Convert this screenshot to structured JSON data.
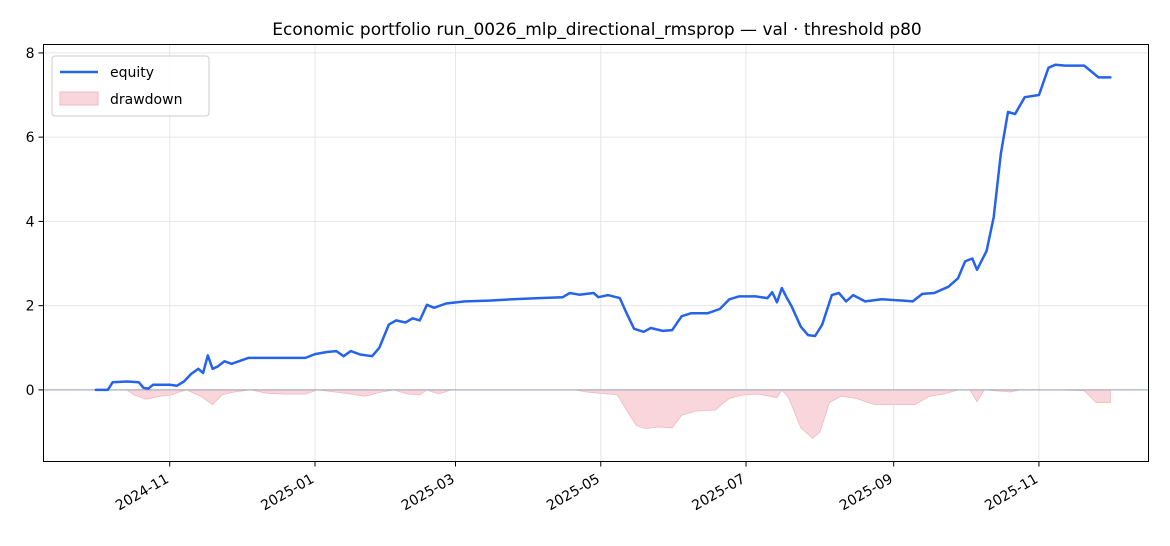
{
  "chart_data": {
    "type": "line",
    "title": "Economic portfolio run_0026_mlp_directional_rmsprop — val · threshold p80",
    "xlabel": "",
    "ylabel": "",
    "x_type": "date",
    "xlim": [
      "2024-09-09",
      "2025-12-17"
    ],
    "ylim": [
      -1.7,
      8.2
    ],
    "grid": true,
    "legend_position": "top-left",
    "colors": {
      "equity": "#2563eb",
      "drawdown_fill": "#f9d6dc",
      "drawdown_edge": "#f2b8c2",
      "zero_line": "#9aa0b4"
    },
    "x_ticks": [
      "2024-11",
      "2025-01",
      "2025-03",
      "2025-05",
      "2025-07",
      "2025-09",
      "2025-11"
    ],
    "x_tick_dates": [
      "2024-11-01",
      "2025-01-01",
      "2025-03-01",
      "2025-05-01",
      "2025-07-01",
      "2025-09-01",
      "2025-11-01"
    ],
    "y_ticks": [
      0,
      2,
      4,
      6,
      8
    ],
    "series": [
      {
        "name": "equity",
        "kind": "line",
        "points": [
          [
            "2024-10-01",
            0.0
          ],
          [
            "2024-10-06",
            0.0
          ],
          [
            "2024-10-08",
            0.18
          ],
          [
            "2024-10-14",
            0.2
          ],
          [
            "2024-10-19",
            0.18
          ],
          [
            "2024-10-21",
            0.05
          ],
          [
            "2024-10-23",
            0.03
          ],
          [
            "2024-10-25",
            0.12
          ],
          [
            "2024-11-01",
            0.12
          ],
          [
            "2024-11-04",
            0.1
          ],
          [
            "2024-11-07",
            0.2
          ],
          [
            "2024-11-10",
            0.38
          ],
          [
            "2024-11-13",
            0.5
          ],
          [
            "2024-11-15",
            0.4
          ],
          [
            "2024-11-17",
            0.82
          ],
          [
            "2024-11-19",
            0.5
          ],
          [
            "2024-11-21",
            0.55
          ],
          [
            "2024-11-24",
            0.68
          ],
          [
            "2024-11-27",
            0.62
          ],
          [
            "2024-12-01",
            0.7
          ],
          [
            "2024-12-04",
            0.76
          ],
          [
            "2024-12-10",
            0.76
          ],
          [
            "2024-12-20",
            0.76
          ],
          [
            "2024-12-28",
            0.76
          ],
          [
            "2025-01-01",
            0.85
          ],
          [
            "2025-01-06",
            0.9
          ],
          [
            "2025-01-10",
            0.92
          ],
          [
            "2025-01-13",
            0.8
          ],
          [
            "2025-01-16",
            0.92
          ],
          [
            "2025-01-20",
            0.84
          ],
          [
            "2025-01-25",
            0.8
          ],
          [
            "2025-01-28",
            1.0
          ],
          [
            "2025-02-01",
            1.55
          ],
          [
            "2025-02-04",
            1.65
          ],
          [
            "2025-02-08",
            1.6
          ],
          [
            "2025-02-11",
            1.7
          ],
          [
            "2025-02-14",
            1.65
          ],
          [
            "2025-02-17",
            2.02
          ],
          [
            "2025-02-20",
            1.95
          ],
          [
            "2025-02-25",
            2.05
          ],
          [
            "2025-03-05",
            2.1
          ],
          [
            "2025-03-15",
            2.12
          ],
          [
            "2025-03-25",
            2.15
          ],
          [
            "2025-04-05",
            2.18
          ],
          [
            "2025-04-15",
            2.2
          ],
          [
            "2025-04-18",
            2.3
          ],
          [
            "2025-04-22",
            2.26
          ],
          [
            "2025-04-28",
            2.3
          ],
          [
            "2025-04-30",
            2.2
          ],
          [
            "2025-05-04",
            2.25
          ],
          [
            "2025-05-09",
            2.18
          ],
          [
            "2025-05-12",
            1.8
          ],
          [
            "2025-05-15",
            1.45
          ],
          [
            "2025-05-19",
            1.38
          ],
          [
            "2025-05-22",
            1.47
          ],
          [
            "2025-05-27",
            1.4
          ],
          [
            "2025-05-31",
            1.42
          ],
          [
            "2025-06-04",
            1.75
          ],
          [
            "2025-06-08",
            1.82
          ],
          [
            "2025-06-15",
            1.82
          ],
          [
            "2025-06-20",
            1.92
          ],
          [
            "2025-06-24",
            2.15
          ],
          [
            "2025-06-28",
            2.22
          ],
          [
            "2025-07-05",
            2.22
          ],
          [
            "2025-07-10",
            2.18
          ],
          [
            "2025-07-12",
            2.32
          ],
          [
            "2025-07-14",
            2.08
          ],
          [
            "2025-07-16",
            2.42
          ],
          [
            "2025-07-18",
            2.2
          ],
          [
            "2025-07-20",
            2.0
          ],
          [
            "2025-07-24",
            1.5
          ],
          [
            "2025-07-27",
            1.3
          ],
          [
            "2025-07-30",
            1.28
          ],
          [
            "2025-08-02",
            1.55
          ],
          [
            "2025-08-06",
            2.25
          ],
          [
            "2025-08-09",
            2.3
          ],
          [
            "2025-08-12",
            2.1
          ],
          [
            "2025-08-15",
            2.25
          ],
          [
            "2025-08-20",
            2.1
          ],
          [
            "2025-08-27",
            2.15
          ],
          [
            "2025-09-05",
            2.12
          ],
          [
            "2025-09-09",
            2.1
          ],
          [
            "2025-09-13",
            2.28
          ],
          [
            "2025-09-18",
            2.3
          ],
          [
            "2025-09-24",
            2.45
          ],
          [
            "2025-09-28",
            2.65
          ],
          [
            "2025-10-01",
            3.05
          ],
          [
            "2025-10-04",
            3.12
          ],
          [
            "2025-10-06",
            2.85
          ],
          [
            "2025-10-10",
            3.3
          ],
          [
            "2025-10-13",
            4.1
          ],
          [
            "2025-10-16",
            5.6
          ],
          [
            "2025-10-19",
            6.6
          ],
          [
            "2025-10-22",
            6.55
          ],
          [
            "2025-10-26",
            6.95
          ],
          [
            "2025-11-01",
            7.0
          ],
          [
            "2025-11-05",
            7.65
          ],
          [
            "2025-11-08",
            7.72
          ],
          [
            "2025-11-12",
            7.7
          ],
          [
            "2025-11-20",
            7.7
          ],
          [
            "2025-11-26",
            7.42
          ],
          [
            "2025-12-01",
            7.42
          ]
        ]
      },
      {
        "name": "drawdown",
        "kind": "area",
        "points": [
          [
            "2024-10-01",
            0.0
          ],
          [
            "2024-10-14",
            0.0
          ],
          [
            "2024-10-17",
            -0.12
          ],
          [
            "2024-10-22",
            -0.22
          ],
          [
            "2024-10-28",
            -0.15
          ],
          [
            "2024-11-02",
            -0.12
          ],
          [
            "2024-11-05",
            -0.05
          ],
          [
            "2024-11-08",
            0.0
          ],
          [
            "2024-11-14",
            -0.15
          ],
          [
            "2024-11-19",
            -0.35
          ],
          [
            "2024-11-23",
            -0.12
          ],
          [
            "2024-11-28",
            -0.05
          ],
          [
            "2024-12-05",
            0.0
          ],
          [
            "2024-12-12",
            -0.08
          ],
          [
            "2024-12-20",
            -0.1
          ],
          [
            "2024-12-28",
            -0.1
          ],
          [
            "2025-01-02",
            0.0
          ],
          [
            "2025-01-14",
            -0.08
          ],
          [
            "2025-01-22",
            -0.15
          ],
          [
            "2025-01-29",
            -0.05
          ],
          [
            "2025-02-03",
            0.0
          ],
          [
            "2025-02-09",
            -0.1
          ],
          [
            "2025-02-14",
            -0.12
          ],
          [
            "2025-02-17",
            0.0
          ],
          [
            "2025-02-22",
            -0.1
          ],
          [
            "2025-02-27",
            0.0
          ],
          [
            "2025-04-20",
            0.0
          ],
          [
            "2025-04-25",
            -0.05
          ],
          [
            "2025-05-01",
            -0.08
          ],
          [
            "2025-05-08",
            -0.12
          ],
          [
            "2025-05-12",
            -0.5
          ],
          [
            "2025-05-16",
            -0.85
          ],
          [
            "2025-05-20",
            -0.92
          ],
          [
            "2025-05-25",
            -0.88
          ],
          [
            "2025-05-31",
            -0.9
          ],
          [
            "2025-06-04",
            -0.6
          ],
          [
            "2025-06-10",
            -0.5
          ],
          [
            "2025-06-18",
            -0.48
          ],
          [
            "2025-06-24",
            -0.2
          ],
          [
            "2025-06-30",
            -0.12
          ],
          [
            "2025-07-06",
            -0.1
          ],
          [
            "2025-07-14",
            -0.18
          ],
          [
            "2025-07-16",
            0.0
          ],
          [
            "2025-07-19",
            -0.2
          ],
          [
            "2025-07-24",
            -0.9
          ],
          [
            "2025-07-29",
            -1.15
          ],
          [
            "2025-08-01",
            -1.0
          ],
          [
            "2025-08-05",
            -0.3
          ],
          [
            "2025-08-10",
            -0.15
          ],
          [
            "2025-08-16",
            -0.2
          ],
          [
            "2025-08-24",
            -0.35
          ],
          [
            "2025-09-02",
            -0.35
          ],
          [
            "2025-09-10",
            -0.35
          ],
          [
            "2025-09-16",
            -0.15
          ],
          [
            "2025-09-22",
            -0.1
          ],
          [
            "2025-09-28",
            0.0
          ],
          [
            "2025-10-03",
            0.0
          ],
          [
            "2025-10-06",
            -0.28
          ],
          [
            "2025-10-09",
            0.0
          ],
          [
            "2025-10-20",
            -0.05
          ],
          [
            "2025-10-24",
            0.0
          ],
          [
            "2025-11-08",
            0.0
          ],
          [
            "2025-11-20",
            -0.02
          ],
          [
            "2025-11-25",
            -0.3
          ],
          [
            "2025-12-01",
            -0.3
          ]
        ]
      }
    ]
  }
}
